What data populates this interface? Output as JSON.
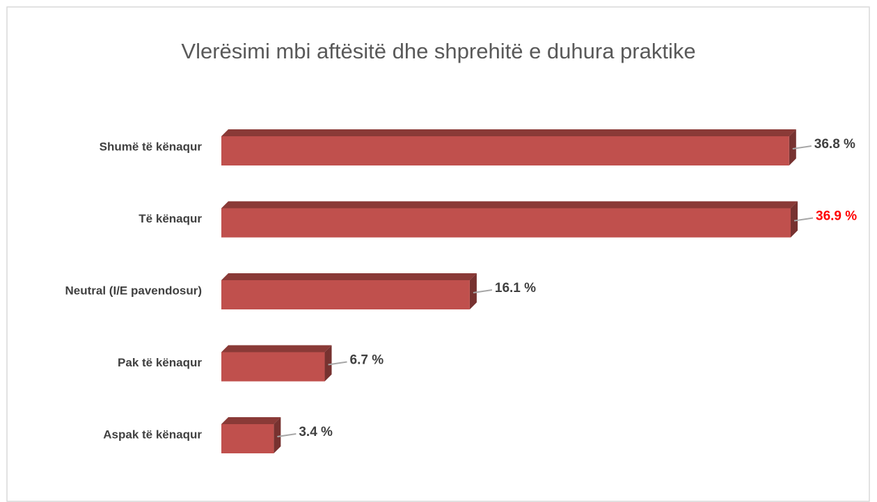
{
  "chart_data": {
    "type": "bar3d_horizontal",
    "title": "Vlerësimi mbi aftësitë dhe shprehitë e duhura praktike",
    "categories": [
      "Shumë të kënaqur",
      "Të kënaqur",
      "Neutral (I/E pavendosur)",
      "Pak të kënaqur",
      "Aspak të kënaqur"
    ],
    "values": [
      36.8,
      36.9,
      16.1,
      6.7,
      3.4
    ],
    "value_labels": [
      "36.8 %",
      "36.9 %",
      "16.1 %",
      "6.7 %",
      "3.4 %"
    ],
    "value_label_colors": [
      "#404040",
      "#ff0000",
      "#404040",
      "#404040",
      "#404040"
    ],
    "color": "#c0504d"
  }
}
